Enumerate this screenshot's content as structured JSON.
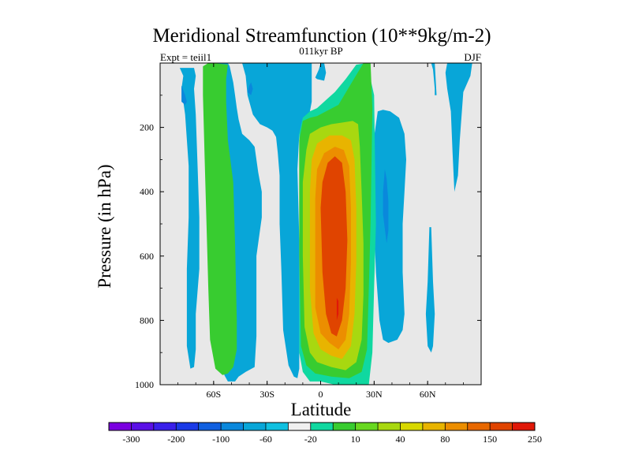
{
  "chart_data": {
    "type": "heatmap",
    "title": "Meridional Streamfunction (10**9kg/m-2)",
    "subtitle_left": "Expt = teiil1",
    "subtitle_center": "011kyr BP",
    "subtitle_right": "DJF",
    "xlabel": "Latitude",
    "ylabel": "Pressure (in hPa)",
    "x_range": [
      -90,
      90
    ],
    "y_range": [
      0,
      1000
    ],
    "y_reversed": true,
    "x_ticks": [
      {
        "value": -60,
        "label": "60S"
      },
      {
        "value": -30,
        "label": "30S"
      },
      {
        "value": 0,
        "label": "0"
      },
      {
        "value": 30,
        "label": "30N"
      },
      {
        "value": 60,
        "label": "60N"
      }
    ],
    "y_ticks": [
      {
        "value": 200,
        "label": "200"
      },
      {
        "value": 400,
        "label": "400"
      },
      {
        "value": 600,
        "label": "600"
      },
      {
        "value": 800,
        "label": "800"
      },
      {
        "value": 1000,
        "label": "1000"
      }
    ],
    "background_color": "#e8e8e8",
    "colorbar": {
      "colors": [
        "#7a00e0",
        "#5a10e6",
        "#3a20ea",
        "#1a3ae6",
        "#1060e0",
        "#0a88dc",
        "#08a6d8",
        "#10c0e0",
        "#f0f0f0",
        "#10d8a0",
        "#38cc30",
        "#68d820",
        "#a8d810",
        "#d8d800",
        "#e8b400",
        "#ec8e00",
        "#e86800",
        "#e04400",
        "#e01808"
      ],
      "labels": [
        {
          "boundary": 1,
          "label": "-300"
        },
        {
          "boundary": 3,
          "label": "-200"
        },
        {
          "boundary": 5,
          "label": "-100"
        },
        {
          "boundary": 7,
          "label": "-60"
        },
        {
          "boundary": 9,
          "label": "-20"
        },
        {
          "boundary": 11,
          "label": "10"
        },
        {
          "boundary": 13,
          "label": "40"
        },
        {
          "boundary": 15,
          "label": "80"
        },
        {
          "boundary": 17,
          "label": "150"
        },
        {
          "boundary": 19,
          "label": "250"
        }
      ]
    },
    "contour_regions": [
      {
        "level": -20,
        "color": "#08a6d8",
        "points": [
          [
            -79,
            15
          ],
          [
            -77,
            40
          ],
          [
            -78,
            80
          ],
          [
            -76,
            160
          ],
          [
            -74,
            320
          ],
          [
            -74,
            480
          ],
          [
            -75,
            640
          ],
          [
            -75,
            780
          ],
          [
            -75,
            880
          ],
          [
            -73,
            950
          ],
          [
            -71,
            945
          ],
          [
            -70,
            890
          ],
          [
            -70,
            780
          ],
          [
            -68,
            640
          ],
          [
            -68,
            480
          ],
          [
            -69,
            320
          ],
          [
            -70,
            160
          ],
          [
            -71,
            80
          ],
          [
            -70,
            40
          ],
          [
            -71,
            15
          ]
        ]
      },
      {
        "level": -20,
        "color": "#08a6d8",
        "points": [
          [
            -59,
            0
          ],
          [
            -58,
            20
          ],
          [
            -57,
            120
          ],
          [
            -56,
            350
          ],
          [
            -55,
            700
          ],
          [
            -55,
            900
          ],
          [
            -54,
            970
          ],
          [
            -52,
            990
          ],
          [
            -48,
            990
          ],
          [
            -46,
            975
          ],
          [
            -42,
            960
          ],
          [
            -37,
            945
          ],
          [
            -36,
            850
          ],
          [
            -36,
            700
          ],
          [
            -36,
            600
          ],
          [
            -34,
            520
          ],
          [
            -33,
            480
          ],
          [
            -33,
            400
          ],
          [
            -35,
            340
          ],
          [
            -37,
            260
          ],
          [
            -40,
            240
          ],
          [
            -44,
            220
          ],
          [
            -46,
            175
          ],
          [
            -47,
            140
          ],
          [
            -48,
            100
          ],
          [
            -49,
            60
          ],
          [
            -51,
            10
          ],
          [
            -52,
            0
          ]
        ]
      },
      {
        "level": -20,
        "color": "#08a6d8",
        "points": [
          [
            -44,
            0
          ],
          [
            -42,
            40
          ],
          [
            -41,
            100
          ],
          [
            -38,
            160
          ],
          [
            -34,
            190
          ],
          [
            -30,
            200
          ],
          [
            -27,
            210
          ],
          [
            -25,
            230
          ],
          [
            -24,
            280
          ],
          [
            -23,
            350
          ],
          [
            -23,
            500
          ],
          [
            -22,
            650
          ],
          [
            -21,
            830
          ],
          [
            -18,
            940
          ],
          [
            -15,
            975
          ],
          [
            -13,
            980
          ],
          [
            -12,
            950
          ],
          [
            -12,
            800
          ],
          [
            -12,
            550
          ],
          [
            -13,
            330
          ],
          [
            -12,
            220
          ],
          [
            -7,
            180
          ],
          [
            -5,
            120
          ],
          [
            -5,
            0
          ]
        ]
      },
      {
        "level": -20,
        "color": "#08a6d8",
        "points": [
          [
            -3,
            45
          ],
          [
            -1,
            20
          ],
          [
            0,
            0
          ],
          [
            2,
            0
          ],
          [
            3,
            30
          ],
          [
            2,
            55
          ],
          [
            -2,
            50
          ]
        ]
      },
      {
        "level": -20,
        "color": "#08a6d8",
        "points": [
          [
            32,
            150
          ],
          [
            30,
            230
          ],
          [
            29,
            350
          ],
          [
            30,
            500
          ],
          [
            31,
            650
          ],
          [
            33,
            800
          ],
          [
            35,
            860
          ],
          [
            38,
            870
          ],
          [
            43,
            860
          ],
          [
            46,
            830
          ],
          [
            47,
            780
          ],
          [
            46,
            650
          ],
          [
            46,
            500
          ],
          [
            47,
            400
          ],
          [
            48,
            300
          ],
          [
            47,
            220
          ],
          [
            44,
            170
          ],
          [
            39,
            150
          ],
          [
            35,
            145
          ]
        ]
      },
      {
        "level": -20,
        "color": "#08a6d8",
        "points": [
          [
            60,
            680
          ],
          [
            59,
            780
          ],
          [
            60,
            880
          ],
          [
            62,
            900
          ],
          [
            63,
            880
          ],
          [
            64,
            780
          ],
          [
            63,
            680
          ],
          [
            62,
            510
          ],
          [
            61,
            510
          ]
        ]
      },
      {
        "level": -20,
        "color": "#08a6d8",
        "points": [
          [
            62,
            0
          ],
          [
            63,
            20
          ],
          [
            64,
            80
          ],
          [
            64,
            100
          ],
          [
            65,
            100
          ],
          [
            64,
            0
          ]
        ]
      },
      {
        "level": -20,
        "color": "#08a6d8",
        "points": [
          [
            71,
            0
          ],
          [
            70,
            30
          ],
          [
            71,
            80
          ],
          [
            73,
            150
          ],
          [
            74,
            280
          ],
          [
            75,
            400
          ],
          [
            77,
            350
          ],
          [
            78,
            240
          ],
          [
            80,
            90
          ],
          [
            84,
            40
          ],
          [
            85,
            0
          ]
        ]
      },
      {
        "level": -60,
        "color": "#0a88dc",
        "points": [
          [
            -78,
            70
          ],
          [
            -76,
            100
          ],
          [
            -75,
            120
          ],
          [
            -76,
            130
          ],
          [
            -78,
            120
          ]
        ]
      },
      {
        "level": -60,
        "color": "#0a88dc",
        "points": [
          [
            -39,
            60
          ],
          [
            -38,
            80
          ],
          [
            -39,
            100
          ],
          [
            -41,
            90
          ],
          [
            -40,
            70
          ]
        ]
      },
      {
        "level": -60,
        "color": "#0a88dc",
        "points": [
          [
            36,
            330
          ],
          [
            35,
            400
          ],
          [
            35,
            470
          ],
          [
            37,
            560
          ],
          [
            38,
            520
          ],
          [
            38,
            430
          ],
          [
            37,
            360
          ]
        ]
      },
      {
        "level": 10,
        "color": "#10d8a0",
        "points": [
          [
            -12,
            300
          ],
          [
            -12,
            220
          ],
          [
            -10,
            170
          ],
          [
            -6,
            150
          ],
          [
            -2,
            140
          ],
          [
            3,
            115
          ],
          [
            8,
            90
          ],
          [
            14,
            50
          ],
          [
            20,
            5
          ],
          [
            26,
            0
          ],
          [
            30,
            100
          ],
          [
            31,
            500
          ],
          [
            30,
            700
          ],
          [
            29,
            900
          ],
          [
            27,
            1000
          ],
          [
            16,
            1000
          ],
          [
            8,
            1000
          ],
          [
            0,
            990
          ],
          [
            -6,
            990
          ],
          [
            -10,
            960
          ],
          [
            -12,
            900
          ],
          [
            -12,
            600
          ]
        ]
      },
      {
        "level": 40,
        "color": "#38cc30",
        "points": [
          [
            -66,
            10
          ],
          [
            -66,
            100
          ],
          [
            -65,
            300
          ],
          [
            -64,
            500
          ],
          [
            -63,
            700
          ],
          [
            -62,
            860
          ],
          [
            -59,
            950
          ],
          [
            -55,
            970
          ],
          [
            -52,
            965
          ],
          [
            -49,
            945
          ],
          [
            -47,
            890
          ],
          [
            -47,
            800
          ],
          [
            -48,
            560
          ],
          [
            -49,
            370
          ],
          [
            -52,
            240
          ],
          [
            -53,
            120
          ],
          [
            -53,
            50
          ],
          [
            -52,
            5
          ],
          [
            -60,
            0
          ],
          [
            -63,
            0
          ]
        ]
      },
      {
        "level": 40,
        "color": "#38cc30",
        "points": [
          [
            -12,
            330
          ],
          [
            -12,
            240
          ],
          [
            -10,
            180
          ],
          [
            -6,
            170
          ],
          [
            -2,
            165
          ],
          [
            3,
            150
          ],
          [
            10,
            130
          ],
          [
            17,
            65
          ],
          [
            24,
            0
          ],
          [
            28,
            0
          ],
          [
            29,
            140
          ],
          [
            28,
            500
          ],
          [
            27,
            700
          ],
          [
            26,
            890
          ],
          [
            23,
            960
          ],
          [
            16,
            980
          ],
          [
            6,
            975
          ],
          [
            -3,
            965
          ],
          [
            -8,
            940
          ],
          [
            -11,
            880
          ],
          [
            -12,
            600
          ]
        ]
      },
      {
        "level": 80,
        "color": "#a8d810",
        "points": [
          [
            -10,
            370
          ],
          [
            -8,
            270
          ],
          [
            -6,
            220
          ],
          [
            0,
            200
          ],
          [
            6,
            190
          ],
          [
            12,
            185
          ],
          [
            18,
            180
          ],
          [
            21,
            190
          ],
          [
            22,
            260
          ],
          [
            23,
            400
          ],
          [
            24,
            560
          ],
          [
            24,
            720
          ],
          [
            23,
            860
          ],
          [
            20,
            930
          ],
          [
            14,
            955
          ],
          [
            6,
            945
          ],
          [
            -2,
            930
          ],
          [
            -6,
            900
          ],
          [
            -9,
            820
          ],
          [
            -10,
            600
          ]
        ]
      },
      {
        "level": 150,
        "color": "#e8b400",
        "points": [
          [
            -6,
            400
          ],
          [
            -5,
            300
          ],
          [
            -2,
            250
          ],
          [
            5,
            225
          ],
          [
            12,
            225
          ],
          [
            17,
            240
          ],
          [
            19,
            300
          ],
          [
            20,
            450
          ],
          [
            20,
            620
          ],
          [
            19,
            780
          ],
          [
            17,
            880
          ],
          [
            12,
            920
          ],
          [
            6,
            910
          ],
          [
            0,
            890
          ],
          [
            -4,
            840
          ],
          [
            -6,
            700
          ]
        ]
      },
      {
        "level": 200,
        "color": "#ec8e00",
        "points": [
          [
            -3,
            420
          ],
          [
            -2,
            330
          ],
          [
            2,
            280
          ],
          [
            8,
            260
          ],
          [
            13,
            270
          ],
          [
            16,
            320
          ],
          [
            17,
            450
          ],
          [
            17,
            620
          ],
          [
            16,
            780
          ],
          [
            14,
            860
          ],
          [
            10,
            890
          ],
          [
            5,
            870
          ],
          [
            0,
            840
          ],
          [
            -3,
            760
          ]
        ]
      },
      {
        "level": 250,
        "color": "#e04400",
        "points": [
          [
            0,
            450
          ],
          [
            1,
            370
          ],
          [
            4,
            310
          ],
          [
            8,
            290
          ],
          [
            12,
            310
          ],
          [
            14,
            400
          ],
          [
            15,
            550
          ],
          [
            14,
            700
          ],
          [
            12,
            800
          ],
          [
            9,
            850
          ],
          [
            6,
            840
          ],
          [
            3,
            780
          ],
          [
            1,
            650
          ]
        ]
      },
      {
        "level": 300,
        "color": "#e01808",
        "points": [
          [
            9,
            730
          ],
          [
            9,
            770
          ],
          [
            9,
            800
          ],
          [
            10,
            780
          ],
          [
            10,
            740
          ]
        ]
      }
    ]
  }
}
